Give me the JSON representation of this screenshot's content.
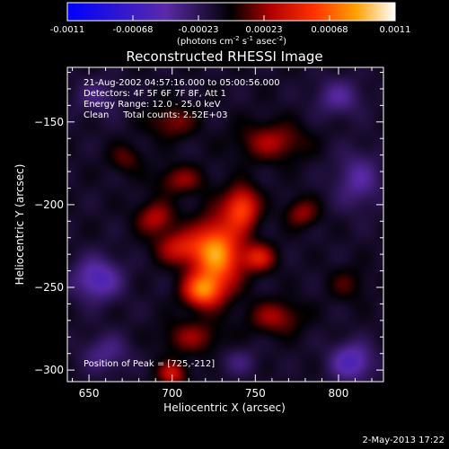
{
  "chart_data": {
    "type": "heatmap",
    "title": "Reconstructed RHESSI Image",
    "xlabel": "Heliocentric X (arcsec)",
    "ylabel": "Heliocentric Y (arcsec)",
    "xlim": [
      637,
      827
    ],
    "ylim": [
      -307,
      -117
    ],
    "x_ticks": [
      650,
      700,
      750,
      800
    ],
    "y_ticks": [
      -150,
      -200,
      -250,
      -300
    ],
    "colorbar": {
      "ticks": [
        "-0.0011",
        "-0.00068",
        "-0.00023",
        "0.00023",
        "0.00068",
        "0.0011"
      ],
      "range": [
        -0.0011,
        0.0011
      ],
      "unit_main": "(photons cm",
      "unit_sup1": "-2",
      "unit_mid1": " s",
      "unit_sup2": "-1",
      "unit_mid2": " asec",
      "unit_sup3": "-2",
      "unit_end": ")"
    },
    "info_lines": [
      "21-Aug-2002 04:57:16.000 to 05:00:56.000",
      "Detectors: 4F 5F 6F 7F 8F, Att 1",
      "Energy Range: 12.0 - 25.0 keV",
      "Clean     Total counts: 2.52E+03"
    ],
    "peak_label": "Position of Peak = [725,-212]",
    "peak": [
      725,
      -212
    ],
    "sources": [
      {
        "x": 727,
        "y": -230,
        "sx": 10,
        "sy": 15,
        "amp": 0.0009
      },
      {
        "x": 718,
        "y": -252,
        "sx": 8,
        "sy": 7,
        "amp": 0.0007
      },
      {
        "x": 742,
        "y": -202,
        "sx": 7,
        "sy": 9,
        "amp": 0.00065
      },
      {
        "x": 705,
        "y": -226,
        "sx": 10,
        "sy": 7,
        "amp": 0.00045
      },
      {
        "x": 752,
        "y": -232,
        "sx": 7,
        "sy": 6,
        "amp": 0.00048
      },
      {
        "x": 690,
        "y": -208,
        "sx": 8,
        "sy": 7,
        "amp": 0.00038
      },
      {
        "x": 705,
        "y": -185,
        "sx": 10,
        "sy": 6,
        "amp": 0.0003
      },
      {
        "x": 760,
        "y": -162,
        "sx": 14,
        "sy": 8,
        "amp": 0.00035
      },
      {
        "x": 700,
        "y": -150,
        "sx": 10,
        "sy": 7,
        "amp": 0.00028
      },
      {
        "x": 778,
        "y": -205,
        "sx": 7,
        "sy": 6,
        "amp": 0.00032
      },
      {
        "x": 762,
        "y": -268,
        "sx": 11,
        "sy": 7,
        "amp": 0.00034
      },
      {
        "x": 712,
        "y": -280,
        "sx": 12,
        "sy": 7,
        "amp": 0.0003
      },
      {
        "x": 700,
        "y": -302,
        "sx": 6,
        "sy": 5,
        "amp": 0.00045
      },
      {
        "x": 672,
        "y": -172,
        "sx": 7,
        "sy": 6,
        "amp": 0.00022
      },
      {
        "x": 805,
        "y": -248,
        "sx": 8,
        "sy": 7,
        "amp": 0.00018
      },
      {
        "x": 655,
        "y": -245,
        "sx": 10,
        "sy": 9,
        "amp": -0.00045
      },
      {
        "x": 808,
        "y": -295,
        "sx": 9,
        "sy": 8,
        "amp": -0.00045
      },
      {
        "x": 812,
        "y": -185,
        "sx": 10,
        "sy": 12,
        "amp": -0.0003
      },
      {
        "x": 800,
        "y": -135,
        "sx": 10,
        "sy": 8,
        "amp": -0.00028
      },
      {
        "x": 660,
        "y": -290,
        "sx": 10,
        "sy": 8,
        "amp": -0.00025
      },
      {
        "x": 655,
        "y": -135,
        "sx": 10,
        "sy": 8,
        "amp": -0.0002
      },
      {
        "x": 740,
        "y": -295,
        "sx": 8,
        "sy": 6,
        "amp": -0.00018
      }
    ],
    "background_level": -0.0001
  },
  "footer": {
    "date": "2-May-2013 17:22"
  }
}
